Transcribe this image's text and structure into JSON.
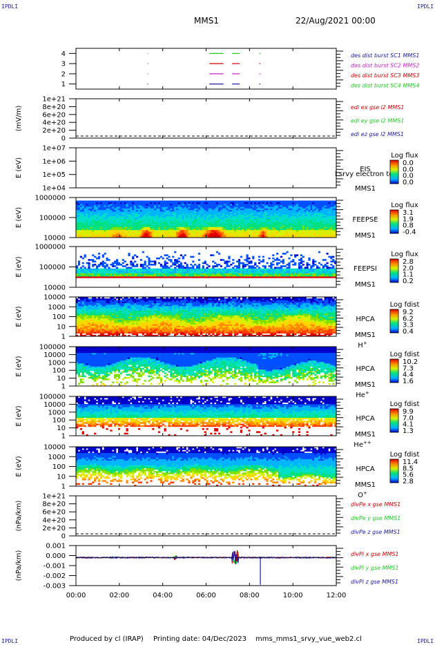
{
  "corner_marks": {
    "tl": "IPDLI",
    "tr": "IPDLI",
    "bl": "IPDLI",
    "br": "IPDLI"
  },
  "header": {
    "spacecraft": "MMS1",
    "datetime": "22/Aug/2021 00:00"
  },
  "footer": {
    "produced": "Produced by cl (IRAP)",
    "printing": "Printing date: 04/Dec/2023",
    "script": "mms_mms1_srvy_vue_web2.cl"
  },
  "colors": {
    "blue": "#1a1aa0",
    "red": "#cc0000",
    "green": "#1ec81e",
    "magenta": "#c81ec8",
    "dark_red": "#b00000"
  },
  "x_axis": {
    "ticks": [
      "00:00",
      "02:00",
      "04:00",
      "06:00",
      "08:00",
      "10:00",
      "12:00"
    ],
    "range_hours": [
      0,
      12
    ]
  },
  "chart_data": [
    {
      "type": "scatter",
      "id": "burst",
      "ylabel": "",
      "yticks": [
        "1",
        "2",
        "3",
        "4"
      ],
      "ylim": [
        0.5,
        4.5
      ],
      "labels": [
        {
          "text": "des dist burst SC1 MMS1",
          "color": "#1a1aa0"
        },
        {
          "text": "des dist burst SC2 MMS2",
          "color": "#c81ec8"
        },
        {
          "text": "des dist burst SC3 MMS3",
          "color": "#cc0000"
        },
        {
          "text": "des dist burst SC4 MMS4",
          "color": "#1ec81e"
        }
      ],
      "series": [
        {
          "y": 4,
          "color": "#1ec81e",
          "intervals": [
            [
              3.3,
              3.32
            ],
            [
              6.15,
              6.8
            ],
            [
              7.2,
              7.55
            ],
            [
              8.45,
              8.5
            ]
          ]
        },
        {
          "y": 3,
          "color": "#cc0000",
          "intervals": [
            [
              3.3,
              3.32
            ],
            [
              6.15,
              6.8
            ],
            [
              7.2,
              7.55
            ],
            [
              8.45,
              8.5
            ]
          ]
        },
        {
          "y": 2,
          "color": "#c81ec8",
          "intervals": [
            [
              3.3,
              3.32
            ],
            [
              6.15,
              6.8
            ],
            [
              7.2,
              7.55
            ],
            [
              8.45,
              8.5
            ]
          ]
        },
        {
          "y": 1,
          "color": "#1a1aa0",
          "intervals": [
            [
              3.3,
              3.32
            ],
            [
              6.15,
              6.8
            ],
            [
              7.2,
              7.55
            ],
            [
              8.45,
              8.5
            ]
          ]
        }
      ]
    },
    {
      "type": "line",
      "id": "efield",
      "ylabel": "(mV/m)",
      "yticks": [
        "0",
        "2e+20",
        "4e+20",
        "6e+20",
        "8e+20",
        "1e+21"
      ],
      "labels": [
        {
          "text": "edi ex gse l2 MMS1",
          "color": "#cc0000"
        },
        {
          "text": "edi ey gse l2 MMS1",
          "color": "#1ec81e"
        },
        {
          "text": "edi ez gse l2 MMS1",
          "color": "#1a1aa0"
        }
      ]
    },
    {
      "type": "heatmap",
      "id": "eis",
      "ylabel": "E (eV)",
      "yticks": [
        "1e+04",
        "1e+05",
        "1e+06",
        "1e+07"
      ],
      "side": [
        "EIS",
        "MMS1"
      ],
      "overlay": "l srvy electron to",
      "cbar_title": "Log flux",
      "cbar_ticks": [
        "0.0",
        "0.0",
        "0.0",
        "0.0"
      ],
      "empty": true
    },
    {
      "type": "heatmap",
      "id": "feepse",
      "ylabel": "E (eV)",
      "yticks": [
        "10000",
        "100000",
        "1000000"
      ],
      "side": [
        "FEEPSE",
        "MMS1"
      ],
      "cbar_title": "Log flux",
      "cbar_ticks": [
        "3.1",
        "1.9",
        "0.8",
        "-0.4"
      ]
    },
    {
      "type": "heatmap",
      "id": "feepsi",
      "ylabel": "E (eV)",
      "yticks": [
        "10000",
        "100000",
        "1000000"
      ],
      "side": [
        "FEEPSI",
        "MMS1"
      ],
      "cbar_title": "Log flux",
      "cbar_ticks": [
        "2.8",
        "2.0",
        "1.1",
        "0.2"
      ]
    },
    {
      "type": "heatmap",
      "id": "hpca_h",
      "ylabel": "E (eV)",
      "yticks": [
        "1",
        "10",
        "100",
        "1000",
        "10000"
      ],
      "side": [
        "HPCA",
        "MMS1"
      ],
      "species": "H",
      "species_sup": "+",
      "cbar_title": "Log fdist",
      "cbar_ticks": [
        "9.2",
        "6.2",
        "3.3",
        "0.4"
      ]
    },
    {
      "type": "heatmap",
      "id": "hpca_he",
      "ylabel": "E (eV)",
      "yticks": [
        "1",
        "10",
        "100",
        "1000",
        "10000",
        "100000"
      ],
      "side": [
        "HPCA",
        "MMS1"
      ],
      "species": "He",
      "species_sup": "+",
      "cbar_title": "Log fdist",
      "cbar_ticks": [
        "10.2",
        "7.3",
        "4.4",
        "1.6"
      ]
    },
    {
      "type": "heatmap",
      "id": "hpca_hepp",
      "ylabel": "E (eV)",
      "yticks": [
        "1",
        "10",
        "100",
        "1000",
        "10000",
        "100000"
      ],
      "side": [
        "HPCA",
        "MMS1"
      ],
      "species": "He",
      "species_sup": "++",
      "cbar_title": "Log fdist",
      "cbar_ticks": [
        "9.9",
        "7.0",
        "4.1",
        "1.3"
      ]
    },
    {
      "type": "heatmap",
      "id": "hpca_o",
      "ylabel": "E (eV)",
      "yticks": [
        "1",
        "10",
        "100",
        "1000",
        "10000"
      ],
      "side": [
        "HPCA",
        "MMS1"
      ],
      "species": "O",
      "species_sup": "+",
      "cbar_title": "Log fdist",
      "cbar_ticks": [
        "11.4",
        "8.5",
        "5.6",
        "2.8"
      ]
    },
    {
      "type": "line",
      "id": "divpe",
      "ylabel": "(nPa/km)",
      "yticks": [
        "0",
        "2e+20",
        "4e+20",
        "6e+20",
        "8e+20",
        "1e+21"
      ],
      "labels": [
        {
          "text": "divPe x gse MMS1",
          "color": "#cc0000"
        },
        {
          "text": "divPe y gse MMS1",
          "color": "#1ec81e"
        },
        {
          "text": "divPe z gse MMS1",
          "color": "#1a1aa0"
        }
      ]
    },
    {
      "type": "line",
      "id": "divpi",
      "ylabel": "(nPa/km)",
      "yticks": [
        "-0.003",
        "-0.002",
        "-0.001",
        "0.000",
        "0.001"
      ],
      "ylim": [
        -0.0035,
        0.0015
      ],
      "labels": [
        {
          "text": "divPi x gse MMS1",
          "color": "#cc0000"
        },
        {
          "text": "divPi y gse MMS1",
          "color": "#1ec81e"
        },
        {
          "text": "divPi z gse MMS1",
          "color": "#1a1aa0"
        }
      ]
    }
  ]
}
